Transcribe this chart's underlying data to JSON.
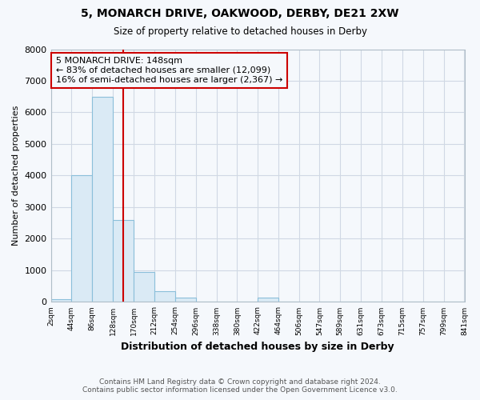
{
  "title": "5, MONARCH DRIVE, OAKWOOD, DERBY, DE21 2XW",
  "subtitle": "Size of property relative to detached houses in Derby",
  "xlabel": "Distribution of detached houses by size in Derby",
  "ylabel": "Number of detached properties",
  "property_size": 148,
  "annotation_line1": "5 MONARCH DRIVE: 148sqm",
  "annotation_line2": "← 83% of detached houses are smaller (12,099)",
  "annotation_line3": "16% of semi-detached houses are larger (2,367) →",
  "footer": "Contains HM Land Registry data © Crown copyright and database right 2024.\nContains public sector information licensed under the Open Government Licence v3.0.",
  "bar_edges": [
    2,
    44,
    86,
    128,
    170,
    212,
    254,
    296,
    338,
    380,
    422,
    464,
    506,
    547,
    589,
    631,
    673,
    715,
    757,
    799,
    841
  ],
  "bar_heights": [
    75,
    4000,
    6500,
    2600,
    950,
    330,
    130,
    0,
    0,
    0,
    130,
    0,
    0,
    0,
    0,
    0,
    0,
    0,
    0,
    0
  ],
  "bar_color": "#daeaf5",
  "bar_edgecolor": "#8bbfda",
  "redline_color": "#cc0000",
  "annotation_box_edgecolor": "#cc0000",
  "grid_color": "#d0d8e4",
  "bg_color": "#f5f8fc",
  "plot_bg_color": "#f5f8fc",
  "ylim": [
    0,
    8000
  ],
  "yticks": [
    0,
    1000,
    2000,
    3000,
    4000,
    5000,
    6000,
    7000,
    8000
  ]
}
